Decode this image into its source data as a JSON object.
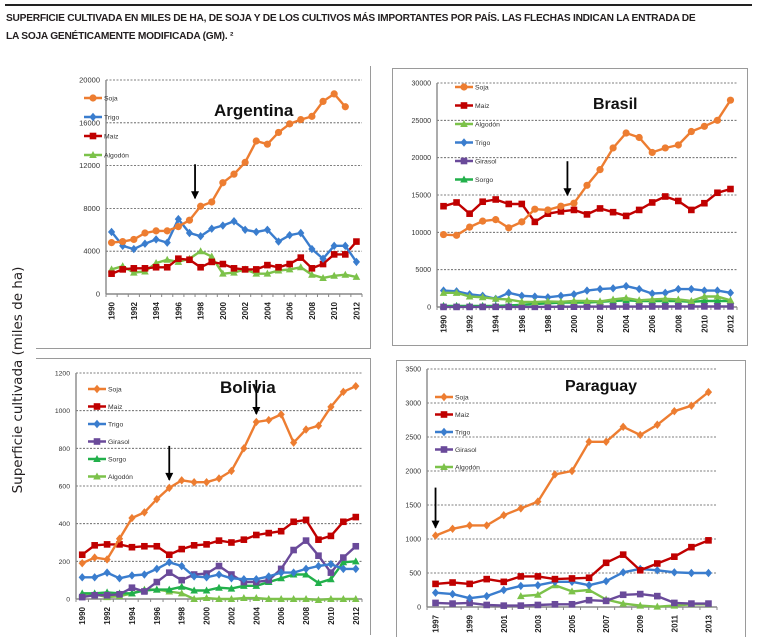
{
  "caption": {
    "line1": "SUPERFICIE CULTIVADA EN MILES DE HA, DE SOJA Y DE LOS CULTIVOS MÁS IMPORTANTES POR PAÍS. LAS FLECHAS INDICAN LA ENTRADA DE",
    "line2": "LA SOJA GENÉTICAMENTE MODIFICADA (GM). ²"
  },
  "shared_ylabel": "Superficie cultivada   (miles de ha)",
  "colors": {
    "Soja": "#ed7d31",
    "Maiz": "#c00000",
    "Trigo": "#3a7dce",
    "Algodon": "#7cc24a",
    "Girasol": "#6a4a9a",
    "Sorgo": "#22b04b"
  },
  "chart_data": [
    {
      "type": "line",
      "title": "Argentina",
      "xlabel": "",
      "ylabel": "Superficie cultivada (miles de ha)",
      "x": [
        1990,
        1991,
        1992,
        1993,
        1994,
        1995,
        1996,
        1997,
        1998,
        1999,
        2000,
        2001,
        2002,
        2003,
        2004,
        2005,
        2006,
        2007,
        2008,
        2009,
        2010,
        2011,
        2012
      ],
      "xticks": [
        "1990",
        "1992",
        "1994",
        "1996",
        "1998",
        "2000",
        "2002",
        "2004",
        "2006",
        "2008",
        "2010",
        "2012"
      ],
      "ylim": [
        0,
        20000
      ],
      "yticks": [
        "0",
        "4000",
        "8000",
        "12000",
        "16000",
        "20000"
      ],
      "grid": true,
      "legend": "top-left",
      "arrow_year": 1997.5,
      "series": [
        {
          "name": "Soja",
          "key": "Soja",
          "marker": "circle",
          "values": [
            4800,
            4900,
            5100,
            5700,
            5900,
            5900,
            6300,
            6900,
            8200,
            8600,
            10400,
            11200,
            12300,
            14300,
            14000,
            15100,
            15900,
            16300,
            16600,
            18000,
            18700,
            17500,
            null
          ]
        },
        {
          "name": "Trigo",
          "key": "Trigo",
          "marker": "diamond",
          "values": [
            5800,
            4500,
            4200,
            4700,
            5100,
            4800,
            7000,
            5700,
            5400,
            6100,
            6400,
            6800,
            6000,
            5800,
            6000,
            4900,
            5500,
            5700,
            4200,
            3300,
            4500,
            4500,
            3000
          ]
        },
        {
          "name": "Maiz",
          "key": "Maiz",
          "marker": "square",
          "values": [
            1900,
            2300,
            2400,
            2400,
            2500,
            2500,
            3300,
            3200,
            2500,
            3000,
            2800,
            2400,
            2300,
            2300,
            2700,
            2500,
            2800,
            3400,
            2400,
            2800,
            3700,
            3700,
            4900
          ]
        },
        {
          "name": "Algodón",
          "key": "Algodon",
          "marker": "triangle",
          "values": [
            2300,
            2600,
            2000,
            2100,
            2900,
            3200,
            3000,
            3300,
            4000,
            3500,
            1900,
            2000,
            2300,
            1900,
            1900,
            2200,
            2300,
            2500,
            1800,
            1500,
            1700,
            1800,
            1600
          ]
        }
      ]
    },
    {
      "type": "line",
      "title": "Brasil",
      "xlabel": "",
      "ylabel": "Superficie cultivada (miles de ha)",
      "x": [
        1990,
        1991,
        1992,
        1993,
        1994,
        1995,
        1996,
        1997,
        1998,
        1999,
        2000,
        2001,
        2002,
        2003,
        2004,
        2005,
        2006,
        2007,
        2008,
        2009,
        2010,
        2011,
        2012
      ],
      "xticks": [
        "1990",
        "1992",
        "1994",
        "1996",
        "1998",
        "2000",
        "2002",
        "2004",
        "2006",
        "2008",
        "2010",
        "2012"
      ],
      "ylim": [
        0,
        30000
      ],
      "yticks": [
        "0",
        "5000",
        "10000",
        "15000",
        "20000",
        "25000",
        "30000"
      ],
      "grid": true,
      "legend": "top-left",
      "arrow_year": 1999.5,
      "series": [
        {
          "name": "Soja",
          "key": "Soja",
          "marker": "circle",
          "values": [
            9700,
            9600,
            10700,
            11500,
            11700,
            10600,
            11400,
            13100,
            13000,
            13500,
            13900,
            16300,
            18400,
            21300,
            23300,
            22700,
            20700,
            21300,
            21700,
            23500,
            24200,
            25000,
            27700
          ]
        },
        {
          "name": "Maiz",
          "key": "Maiz",
          "marker": "square",
          "values": [
            13500,
            14000,
            12500,
            14100,
            14400,
            13800,
            13800,
            11400,
            12500,
            12800,
            13000,
            12400,
            13200,
            12700,
            12200,
            13000,
            14000,
            14800,
            14200,
            13000,
            13900,
            15300,
            15800
          ]
        },
        {
          "name": "Algodón",
          "key": "Algodon",
          "marker": "triangle",
          "values": [
            1900,
            1900,
            1400,
            1300,
            1100,
            1000,
            700,
            650,
            750,
            700,
            800,
            800,
            750,
            1000,
            1200,
            900,
            1000,
            1100,
            1000,
            800,
            1400,
            1400,
            900
          ]
        },
        {
          "name": "Trigo",
          "key": "Trigo",
          "marker": "diamond",
          "values": [
            2200,
            2100,
            1700,
            1500,
            1100,
            1900,
            1500,
            1400,
            1300,
            1500,
            1700,
            2200,
            2400,
            2500,
            2800,
            2400,
            1800,
            1900,
            2400,
            2400,
            2200,
            2200,
            1900
          ]
        },
        {
          "name": "Girasol",
          "key": "Girasol",
          "marker": "square",
          "values": [
            10,
            10,
            10,
            10,
            20,
            20,
            20,
            20,
            30,
            40,
            40,
            50,
            60,
            70,
            60,
            70,
            70,
            70,
            80,
            80,
            80,
            80,
            80
          ]
        },
        {
          "name": "Sorgo",
          "key": "Sorgo",
          "marker": "triangle",
          "values": [
            150,
            150,
            150,
            150,
            150,
            200,
            300,
            400,
            500,
            600,
            600,
            600,
            700,
            800,
            900,
            800,
            800,
            800,
            800,
            700,
            800,
            800,
            800
          ]
        }
      ]
    },
    {
      "type": "line",
      "title": "Bolivia",
      "xlabel": "",
      "ylabel": "Superficie cultivada (miles de ha)",
      "x": [
        1990,
        1991,
        1992,
        1993,
        1994,
        1995,
        1996,
        1997,
        1998,
        1999,
        2000,
        2001,
        2002,
        2003,
        2004,
        2005,
        2006,
        2007,
        2008,
        2009,
        2010,
        2011,
        2012
      ],
      "xticks": [
        "1990",
        "1992",
        "1994",
        "1996",
        "1998",
        "2000",
        "2002",
        "2004",
        "2006",
        "2008",
        "2010",
        "2012"
      ],
      "ylim": [
        0,
        1200
      ],
      "yticks": [
        "0",
        "200",
        "400",
        "600",
        "800",
        "1000",
        "1200"
      ],
      "grid": true,
      "legend": "top-left",
      "arrow_years": [
        1997,
        2004
      ],
      "series": [
        {
          "name": "Soja",
          "key": "Soja",
          "marker": "diamond",
          "values": [
            190,
            220,
            210,
            320,
            430,
            460,
            530,
            590,
            630,
            620,
            620,
            640,
            680,
            800,
            940,
            950,
            980,
            830,
            900,
            920,
            1020,
            1100,
            1130
          ]
        },
        {
          "name": "Maiz",
          "key": "Maiz",
          "marker": "square",
          "values": [
            235,
            285,
            290,
            290,
            275,
            280,
            280,
            235,
            265,
            285,
            290,
            310,
            300,
            315,
            340,
            350,
            360,
            410,
            420,
            315,
            335,
            410,
            435
          ]
        },
        {
          "name": "Trigo",
          "key": "Trigo",
          "marker": "diamond",
          "values": [
            115,
            115,
            140,
            110,
            125,
            130,
            160,
            195,
            175,
            120,
            115,
            130,
            110,
            105,
            105,
            120,
            140,
            140,
            160,
            175,
            185,
            160,
            160
          ]
        },
        {
          "name": "Girasol",
          "key": "Girasol",
          "marker": "square",
          "values": [
            10,
            20,
            20,
            25,
            60,
            40,
            90,
            140,
            100,
            130,
            135,
            175,
            130,
            90,
            90,
            100,
            160,
            260,
            310,
            230,
            140,
            220,
            280
          ]
        },
        {
          "name": "Sorgo",
          "key": "Sorgo",
          "marker": "triangle",
          "values": [
            30,
            30,
            35,
            30,
            30,
            45,
            50,
            50,
            65,
            45,
            45,
            60,
            55,
            70,
            70,
            90,
            110,
            130,
            130,
            85,
            105,
            195,
            200
          ]
        },
        {
          "name": "Algodón",
          "key": "Algodon",
          "marker": "triangle",
          "values": [
            20,
            25,
            10,
            15,
            30,
            50,
            50,
            40,
            30,
            0,
            5,
            0,
            0,
            5,
            5,
            0,
            0,
            0,
            0,
            -5,
            0,
            0,
            0
          ]
        }
      ]
    },
    {
      "type": "line",
      "title": "Paraguay",
      "xlabel": "",
      "ylabel": "Superficie cultivada (miles de ha)",
      "x": [
        1997,
        1998,
        1999,
        2000,
        2001,
        2002,
        2003,
        2004,
        2005,
        2006,
        2007,
        2008,
        2009,
        2010,
        2011,
        2012,
        2013
      ],
      "xticks": [
        "1997",
        "1999",
        "2001",
        "2003",
        "2005",
        "2007",
        "2009",
        "2011",
        "2013"
      ],
      "ylim": [
        0,
        3500
      ],
      "yticks": [
        "0",
        "500",
        "1000",
        "1500",
        "2000",
        "2500",
        "3000",
        "3500"
      ],
      "grid": true,
      "legend": "top-left",
      "arrow_year": 1997,
      "series": [
        {
          "name": "Soja",
          "key": "Soja",
          "marker": "diamond",
          "values": [
            1050,
            1150,
            1200,
            1200,
            1350,
            1450,
            1550,
            1950,
            2000,
            2430,
            2430,
            2650,
            2530,
            2680,
            2880,
            2960,
            3160
          ]
        },
        {
          "name": "Maiz",
          "key": "Maiz",
          "marker": "square",
          "values": [
            340,
            360,
            340,
            410,
            370,
            450,
            450,
            410,
            420,
            430,
            650,
            770,
            540,
            640,
            740,
            880,
            980
          ]
        },
        {
          "name": "Trigo",
          "key": "Trigo",
          "marker": "diamond",
          "values": [
            210,
            190,
            130,
            160,
            250,
            310,
            320,
            370,
            370,
            320,
            380,
            510,
            560,
            540,
            510,
            500,
            500
          ]
        },
        {
          "name": "Girasol",
          "key": "Girasol",
          "marker": "square",
          "values": [
            60,
            50,
            60,
            30,
            20,
            20,
            30,
            40,
            40,
            100,
            90,
            180,
            190,
            160,
            60,
            50,
            50
          ]
        },
        {
          "name": "Algodón",
          "key": "Algodon",
          "marker": "triangle",
          "values": [
            null,
            null,
            null,
            null,
            null,
            160,
            180,
            320,
            230,
            250,
            110,
            50,
            20,
            5,
            20,
            40,
            40
          ]
        }
      ]
    }
  ]
}
